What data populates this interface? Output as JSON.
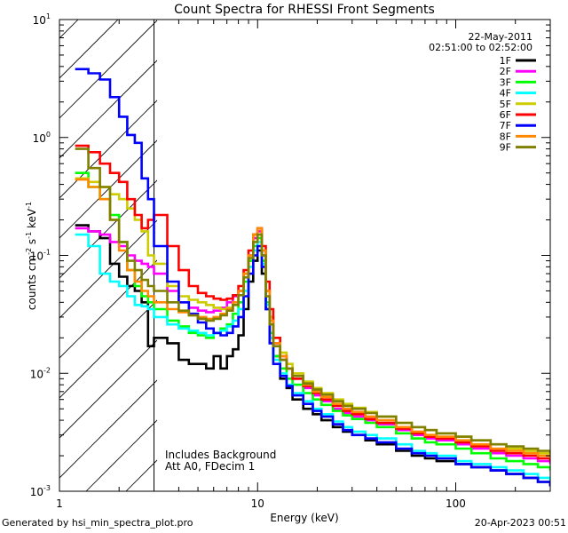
{
  "chart_data": {
    "type": "line",
    "title": "Count Spectra for RHESSI Front Segments",
    "xlabel": "Energy (keV)",
    "ylabel_parts": [
      "counts cm",
      "-2",
      " s",
      "-1",
      " keV",
      "-1"
    ],
    "x_scale": "log",
    "y_scale": "log",
    "xlim": [
      1,
      300
    ],
    "ylim": [
      0.001,
      10
    ],
    "x_ticks": [
      {
        "value": 1,
        "label": "1"
      },
      {
        "value": 10,
        "label": "10"
      },
      {
        "value": 100,
        "label": "100"
      }
    ],
    "y_ticks": [
      {
        "value": 0.001,
        "base": "10",
        "exp": "-3"
      },
      {
        "value": 0.01,
        "base": "10",
        "exp": "-2"
      },
      {
        "value": 0.1,
        "base": "10",
        "exp": "-1"
      },
      {
        "value": 1,
        "base": "10",
        "exp": "0"
      },
      {
        "value": 10,
        "base": "10",
        "exp": "1"
      }
    ],
    "date": "22-May-2011",
    "time_range": "02:51:00 to 02:52:00",
    "excluded_region_upper_keV": 3,
    "annotations": [
      "Includes Background",
      "Att A0, FDecim 1"
    ],
    "series": [
      {
        "name": "1F",
        "color": "#000000",
        "x": [
          1.2,
          1.4,
          1.6,
          1.8,
          2.0,
          2.2,
          2.4,
          2.6,
          2.8,
          3.0,
          3.5,
          4,
          4.5,
          5,
          5.5,
          6,
          6.5,
          7,
          7.5,
          8,
          8.5,
          9,
          9.5,
          10,
          10.5,
          11,
          11.5,
          12,
          13,
          14,
          15,
          17,
          19,
          21,
          24,
          27,
          30,
          35,
          40,
          50,
          60,
          70,
          80,
          100,
          120,
          150,
          180,
          220,
          260,
          300
        ],
        "y": [
          0.18,
          0.16,
          0.14,
          0.085,
          0.066,
          0.055,
          0.05,
          0.04,
          0.017,
          0.02,
          0.018,
          0.013,
          0.012,
          0.012,
          0.011,
          0.014,
          0.011,
          0.014,
          0.016,
          0.021,
          0.035,
          0.06,
          0.09,
          0.11,
          0.07,
          0.035,
          0.02,
          0.014,
          0.009,
          0.0075,
          0.006,
          0.005,
          0.0045,
          0.004,
          0.0035,
          0.0032,
          0.003,
          0.0027,
          0.0025,
          0.0022,
          0.002,
          0.0019,
          0.0018,
          0.0017,
          0.0016,
          0.0015,
          0.0014,
          0.0013,
          0.0012,
          0.0011
        ]
      },
      {
        "name": "2F",
        "color": "#ff00ff",
        "x": [
          1.2,
          1.4,
          1.6,
          1.8,
          2.0,
          2.2,
          2.4,
          2.6,
          2.8,
          3.0,
          3.5,
          4,
          4.5,
          5,
          5.5,
          6,
          6.5,
          7,
          7.5,
          8,
          8.5,
          9,
          9.5,
          10,
          10.5,
          11,
          11.5,
          12,
          13,
          14,
          15,
          17,
          19,
          21,
          24,
          27,
          30,
          35,
          40,
          50,
          60,
          70,
          80,
          100,
          120,
          150,
          180,
          220,
          260,
          300
        ],
        "y": [
          0.17,
          0.16,
          0.15,
          0.13,
          0.12,
          0.1,
          0.09,
          0.085,
          0.08,
          0.07,
          0.05,
          0.04,
          0.036,
          0.034,
          0.033,
          0.034,
          0.036,
          0.04,
          0.045,
          0.05,
          0.07,
          0.1,
          0.14,
          0.16,
          0.1,
          0.05,
          0.03,
          0.018,
          0.013,
          0.011,
          0.009,
          0.0075,
          0.0065,
          0.0058,
          0.005,
          0.0046,
          0.0043,
          0.004,
          0.0037,
          0.0033,
          0.003,
          0.0028,
          0.0027,
          0.0025,
          0.0023,
          0.0021,
          0.002,
          0.0019,
          0.0018,
          0.0017
        ]
      },
      {
        "name": "3F",
        "color": "#00ff00",
        "x": [
          1.2,
          1.4,
          1.6,
          1.8,
          2.0,
          2.2,
          2.4,
          2.6,
          2.8,
          3.0,
          3.5,
          4,
          4.5,
          5,
          5.5,
          6,
          6.5,
          7,
          7.5,
          8,
          8.5,
          9,
          9.5,
          10,
          10.5,
          11,
          11.5,
          12,
          13,
          14,
          15,
          17,
          19,
          21,
          24,
          27,
          30,
          35,
          40,
          50,
          60,
          70,
          80,
          100,
          120,
          150,
          180,
          220,
          260,
          300
        ],
        "y": [
          0.5,
          0.38,
          0.3,
          0.22,
          0.13,
          0.075,
          0.055,
          0.045,
          0.04,
          0.035,
          0.028,
          0.025,
          0.022,
          0.021,
          0.02,
          0.022,
          0.024,
          0.026,
          0.032,
          0.04,
          0.06,
          0.09,
          0.12,
          0.14,
          0.09,
          0.04,
          0.022,
          0.014,
          0.011,
          0.009,
          0.008,
          0.0068,
          0.006,
          0.0054,
          0.0048,
          0.0044,
          0.0041,
          0.0038,
          0.0035,
          0.0031,
          0.0028,
          0.0026,
          0.0025,
          0.0023,
          0.0021,
          0.0019,
          0.0018,
          0.0017,
          0.0016,
          0.0015
        ]
      },
      {
        "name": "4F",
        "color": "#00ffff",
        "x": [
          1.2,
          1.4,
          1.6,
          1.8,
          2.0,
          2.2,
          2.4,
          2.6,
          2.8,
          3.0,
          3.5,
          4,
          4.5,
          5,
          5.5,
          6,
          6.5,
          7,
          7.5,
          8,
          8.5,
          9,
          9.5,
          10,
          10.5,
          11,
          11.5,
          12,
          13,
          14,
          15,
          17,
          19,
          21,
          24,
          27,
          30,
          35,
          40,
          50,
          60,
          70,
          80,
          100,
          120,
          150,
          180,
          220,
          260,
          300
        ],
        "y": [
          0.15,
          0.12,
          0.07,
          0.06,
          0.055,
          0.045,
          0.038,
          0.037,
          0.035,
          0.03,
          0.026,
          0.024,
          0.023,
          0.022,
          0.021,
          0.022,
          0.023,
          0.025,
          0.028,
          0.035,
          0.05,
          0.08,
          0.11,
          0.13,
          0.085,
          0.038,
          0.02,
          0.013,
          0.01,
          0.008,
          0.0068,
          0.0058,
          0.005,
          0.0045,
          0.0039,
          0.0035,
          0.0032,
          0.003,
          0.0028,
          0.0025,
          0.0022,
          0.0021,
          0.002,
          0.0018,
          0.0017,
          0.0016,
          0.0015,
          0.0014,
          0.0013,
          0.0012
        ]
      },
      {
        "name": "5F",
        "color": "#cccc00",
        "x": [
          1.2,
          1.4,
          1.6,
          1.8,
          2.0,
          2.2,
          2.4,
          2.6,
          2.8,
          3.0,
          3.5,
          4,
          4.5,
          5,
          5.5,
          6,
          6.5,
          7,
          7.5,
          8,
          8.5,
          9,
          9.5,
          10,
          10.5,
          11,
          11.5,
          12,
          13,
          14,
          15,
          17,
          19,
          21,
          24,
          27,
          30,
          35,
          40,
          50,
          60,
          70,
          80,
          100,
          120,
          150,
          180,
          220,
          260,
          300
        ],
        "y": [
          0.45,
          0.42,
          0.38,
          0.33,
          0.3,
          0.25,
          0.2,
          0.16,
          0.1,
          0.085,
          0.055,
          0.045,
          0.042,
          0.04,
          0.038,
          0.036,
          0.035,
          0.036,
          0.04,
          0.05,
          0.07,
          0.1,
          0.15,
          0.17,
          0.11,
          0.05,
          0.03,
          0.02,
          0.015,
          0.012,
          0.01,
          0.0085,
          0.0075,
          0.0068,
          0.006,
          0.0055,
          0.0051,
          0.0047,
          0.0043,
          0.0038,
          0.0035,
          0.0033,
          0.0031,
          0.0029,
          0.0027,
          0.0025,
          0.0023,
          0.0022,
          0.0021,
          0.002
        ]
      },
      {
        "name": "6F",
        "color": "#ff0000",
        "x": [
          1.2,
          1.4,
          1.6,
          1.8,
          2.0,
          2.2,
          2.4,
          2.6,
          2.8,
          3.0,
          3.5,
          4,
          4.5,
          5,
          5.5,
          6,
          6.5,
          7,
          7.5,
          8,
          8.5,
          9,
          9.5,
          10,
          10.5,
          11,
          11.5,
          12,
          13,
          14,
          15,
          17,
          19,
          21,
          24,
          27,
          30,
          35,
          40,
          50,
          60,
          70,
          80,
          100,
          120,
          150,
          180,
          220,
          260,
          300
        ],
        "y": [
          0.85,
          0.75,
          0.6,
          0.5,
          0.42,
          0.3,
          0.22,
          0.17,
          0.2,
          0.22,
          0.12,
          0.075,
          0.055,
          0.048,
          0.045,
          0.043,
          0.042,
          0.043,
          0.046,
          0.055,
          0.075,
          0.11,
          0.15,
          0.17,
          0.12,
          0.06,
          0.035,
          0.02,
          0.014,
          0.011,
          0.009,
          0.0078,
          0.0068,
          0.006,
          0.0053,
          0.0048,
          0.0045,
          0.0041,
          0.0038,
          0.0034,
          0.0031,
          0.0029,
          0.0028,
          0.0026,
          0.0024,
          0.0022,
          0.0021,
          0.002,
          0.0019,
          0.0018
        ]
      },
      {
        "name": "7F",
        "color": "#0000ff",
        "x": [
          1.2,
          1.4,
          1.6,
          1.8,
          2.0,
          2.2,
          2.4,
          2.6,
          2.8,
          3.0,
          3.5,
          4,
          4.5,
          5,
          5.5,
          6,
          6.5,
          7,
          7.5,
          8,
          8.5,
          9,
          9.5,
          10,
          10.5,
          11,
          11.5,
          12,
          13,
          14,
          15,
          17,
          19,
          21,
          24,
          27,
          30,
          35,
          40,
          50,
          60,
          70,
          80,
          100,
          120,
          150,
          180,
          220,
          260,
          300
        ],
        "y": [
          3.8,
          3.5,
          3.1,
          2.2,
          1.5,
          1.05,
          0.9,
          0.45,
          0.3,
          0.12,
          0.06,
          0.04,
          0.032,
          0.027,
          0.024,
          0.022,
          0.021,
          0.022,
          0.025,
          0.03,
          0.045,
          0.07,
          0.1,
          0.12,
          0.08,
          0.035,
          0.018,
          0.012,
          0.0095,
          0.0078,
          0.0065,
          0.0055,
          0.0048,
          0.0043,
          0.0037,
          0.0033,
          0.003,
          0.0028,
          0.0026,
          0.0023,
          0.0021,
          0.002,
          0.0019,
          0.0017,
          0.0016,
          0.0015,
          0.0014,
          0.0013,
          0.0012,
          0.0011
        ]
      },
      {
        "name": "8F",
        "color": "#ff8800",
        "x": [
          1.2,
          1.4,
          1.6,
          1.8,
          2.0,
          2.2,
          2.4,
          2.6,
          2.8,
          3.0,
          3.5,
          4,
          4.5,
          5,
          5.5,
          6,
          6.5,
          7,
          7.5,
          8,
          8.5,
          9,
          9.5,
          10,
          10.5,
          11,
          11.5,
          12,
          13,
          14,
          15,
          17,
          19,
          21,
          24,
          27,
          30,
          35,
          40,
          50,
          60,
          70,
          80,
          100,
          120,
          150,
          180,
          220,
          260,
          300
        ],
        "y": [
          0.44,
          0.38,
          0.3,
          0.2,
          0.11,
          0.075,
          0.06,
          0.05,
          0.045,
          0.04,
          0.035,
          0.033,
          0.031,
          0.03,
          0.029,
          0.03,
          0.032,
          0.035,
          0.04,
          0.05,
          0.07,
          0.1,
          0.15,
          0.17,
          0.11,
          0.05,
          0.028,
          0.018,
          0.014,
          0.011,
          0.0095,
          0.008,
          0.007,
          0.0063,
          0.0055,
          0.005,
          0.0047,
          0.0043,
          0.004,
          0.0035,
          0.0032,
          0.003,
          0.0029,
          0.0027,
          0.0025,
          0.0023,
          0.0022,
          0.0021,
          0.002,
          0.0019
        ]
      },
      {
        "name": "9F",
        "color": "#808000",
        "x": [
          1.2,
          1.4,
          1.6,
          1.8,
          2.0,
          2.2,
          2.4,
          2.6,
          2.8,
          3.0,
          3.5,
          4,
          4.5,
          5,
          5.5,
          6,
          6.5,
          7,
          7.5,
          8,
          8.5,
          9,
          9.5,
          10,
          10.5,
          11,
          11.5,
          12,
          13,
          14,
          15,
          17,
          19,
          21,
          24,
          27,
          30,
          35,
          40,
          50,
          60,
          70,
          80,
          100,
          120,
          150,
          180,
          220,
          260,
          300
        ],
        "y": [
          0.8,
          0.55,
          0.38,
          0.2,
          0.13,
          0.09,
          0.075,
          0.062,
          0.055,
          0.05,
          0.04,
          0.034,
          0.031,
          0.029,
          0.028,
          0.029,
          0.031,
          0.034,
          0.038,
          0.046,
          0.065,
          0.095,
          0.13,
          0.15,
          0.1,
          0.045,
          0.026,
          0.017,
          0.013,
          0.011,
          0.0095,
          0.0082,
          0.0073,
          0.0066,
          0.0058,
          0.0053,
          0.005,
          0.0046,
          0.0043,
          0.0038,
          0.0035,
          0.0033,
          0.0031,
          0.0029,
          0.0027,
          0.0025,
          0.0024,
          0.0023,
          0.0022,
          0.0021
        ]
      }
    ]
  },
  "footer": {
    "generated_by": "Generated by hsi_min_spectra_plot.pro",
    "datetime": "20-Apr-2023 00:51"
  }
}
